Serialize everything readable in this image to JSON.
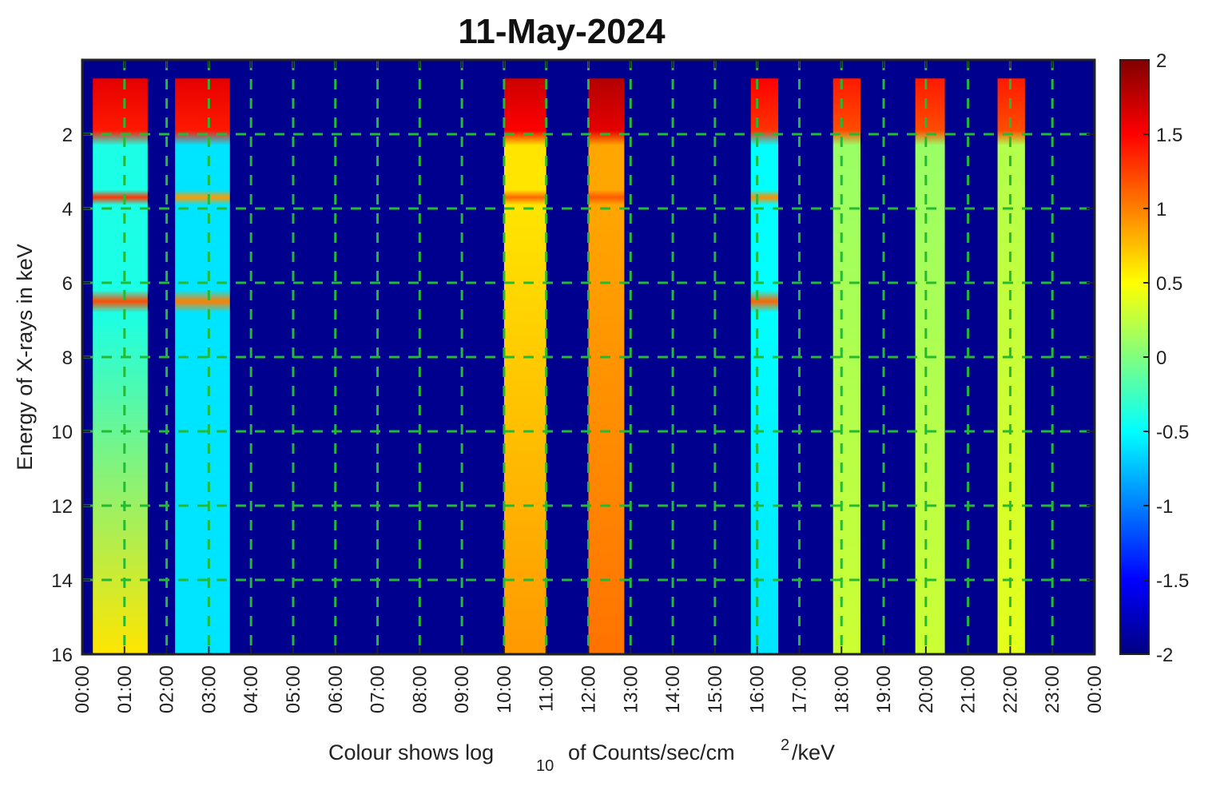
{
  "chart_data": {
    "type": "heatmap",
    "title": "11-May-2024",
    "ylabel": "Energy of X-rays in keV",
    "xlabel_parts": {
      "pre": "Colour shows log",
      "sub": "10",
      "mid": "of Counts/sec/cm",
      "sup": "2",
      "post": "/keV"
    },
    "x_unit": "hours (UT)",
    "x_range": [
      0,
      24
    ],
    "x_ticks": [
      0,
      1,
      2,
      3,
      4,
      5,
      6,
      7,
      8,
      9,
      10,
      11,
      12,
      13,
      14,
      15,
      16,
      17,
      18,
      19,
      20,
      21,
      22,
      23,
      24
    ],
    "x_tick_labels": [
      "00:00",
      "01:00",
      "02:00",
      "03:00",
      "04:00",
      "05:00",
      "06:00",
      "07:00",
      "08:00",
      "09:00",
      "10:00",
      "11:00",
      "12:00",
      "13:00",
      "14:00",
      "15:00",
      "16:00",
      "17:00",
      "18:00",
      "19:00",
      "20:00",
      "21:00",
      "22:00",
      "23:00",
      "00:00"
    ],
    "y_range": [
      0,
      16
    ],
    "y_direction": "reversed",
    "y_ticks": [
      2,
      4,
      6,
      8,
      10,
      12,
      14,
      16
    ],
    "y_tick_labels": [
      "2",
      "4",
      "6",
      "8",
      "10",
      "12",
      "14",
      "16"
    ],
    "grid": true,
    "grid_style": "green dashed",
    "background_value": -2,
    "colorbar": {
      "colormap": "jet",
      "range": [
        -2,
        2
      ],
      "ticks": [
        2,
        1.5,
        1,
        0.5,
        0,
        -0.5,
        -1,
        -1.5,
        -2
      ],
      "tick_labels": [
        "2",
        "1.5",
        "1",
        "0.5",
        "0",
        "-0.5",
        "-1",
        "-1.5",
        "-2"
      ],
      "placement": "right"
    },
    "observation_windows": [
      {
        "start": 0.25,
        "end": 1.55,
        "emin": 0.5,
        "emax": 16,
        "low_energy_level": 1.6,
        "continuum_start": -0.4,
        "continuum_end": 0.6,
        "line_3_7": 1.3,
        "line_6_5": 1.2
      },
      {
        "start": 2.2,
        "end": 3.5,
        "emin": 0.5,
        "emax": 16,
        "low_energy_level": 1.6,
        "continuum_start": -0.6,
        "continuum_end": -0.6,
        "line_3_7": 0.9,
        "line_6_5": 1.0
      },
      {
        "start": 10.0,
        "end": 11.0,
        "emin": 0.5,
        "emax": 16,
        "low_energy_level": 1.7,
        "continuum_start": 0.6,
        "continuum_end": 0.9,
        "line_3_7": 1.1,
        "line_6_5": null
      },
      {
        "start": 12.0,
        "end": 12.85,
        "emin": 0.5,
        "emax": 16,
        "low_energy_level": 1.8,
        "continuum_start": 0.85,
        "continuum_end": 1.05,
        "line_3_7": 1.15,
        "line_6_5": null
      },
      {
        "start": 15.85,
        "end": 16.5,
        "emin": 0.5,
        "emax": 16,
        "low_energy_level": 1.5,
        "continuum_start": -0.5,
        "continuum_end": -0.6,
        "line_3_7": 0.95,
        "line_6_5": 1.1
      },
      {
        "start": 17.8,
        "end": 18.45,
        "emin": 0.5,
        "emax": 16,
        "low_energy_level": 1.4,
        "continuum_start": 0.1,
        "continuum_end": 0.3,
        "line_3_7": null,
        "line_6_5": null
      },
      {
        "start": 19.75,
        "end": 20.45,
        "emin": 0.5,
        "emax": 16,
        "low_energy_level": 1.4,
        "continuum_start": 0.1,
        "continuum_end": 0.3,
        "line_3_7": null,
        "line_6_5": null
      },
      {
        "start": 21.7,
        "end": 22.35,
        "emin": 0.5,
        "emax": 16,
        "low_energy_level": 1.4,
        "continuum_start": 0.2,
        "continuum_end": 0.4,
        "line_3_7": null,
        "line_6_5": null
      }
    ]
  }
}
